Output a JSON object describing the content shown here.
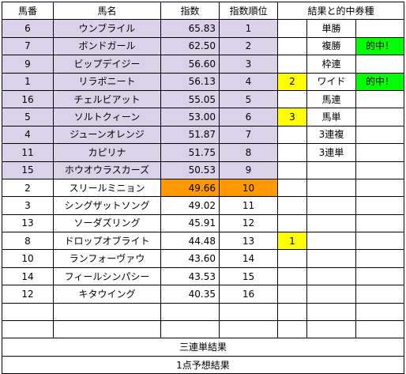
{
  "headers": [
    "馬番",
    "馬名",
    "指数",
    "指数順位",
    "結果と的中券種"
  ],
  "horses": [
    {
      "no": "6",
      "name": "ウンブライル",
      "score": "65.83",
      "rank": "1"
    },
    {
      "no": "7",
      "name": "ボンドガール",
      "score": "62.50",
      "rank": "2"
    },
    {
      "no": "9",
      "name": "ビップデイジー",
      "score": "56.60",
      "rank": "3"
    },
    {
      "no": "1",
      "name": "リラボニート",
      "score": "56.13",
      "rank": "4"
    },
    {
      "no": "16",
      "name": "チェルビアット",
      "score": "55.05",
      "rank": "5"
    },
    {
      "no": "5",
      "name": "ソルトクィーン",
      "score": "53.00",
      "rank": "6"
    },
    {
      "no": "4",
      "name": "ジューンオレンジ",
      "score": "51.87",
      "rank": "7"
    },
    {
      "no": "11",
      "name": "カピリナ",
      "score": "51.75",
      "rank": "8"
    },
    {
      "no": "15",
      "name": "ホウオウラスカーズ",
      "score": "50.53",
      "rank": "9"
    },
    {
      "no": "2",
      "name": "スリールミニョン",
      "score": "49.66",
      "rank": "10"
    },
    {
      "no": "3",
      "name": "シングザットソング",
      "score": "49.02",
      "rank": "11"
    },
    {
      "no": "13",
      "name": "ソーダズリング",
      "score": "45.91",
      "rank": "12"
    },
    {
      "no": "8",
      "name": "ドロップオブライト",
      "score": "44.48",
      "rank": "13"
    },
    {
      "no": "10",
      "name": "ランフォーヴァウ",
      "score": "43.60",
      "rank": "14"
    },
    {
      "no": "14",
      "name": "フィールシンパシー",
      "score": "43.53",
      "rank": "15"
    },
    {
      "no": "12",
      "name": "キタウイング",
      "score": "40.35",
      "rank": "16"
    }
  ],
  "results": [
    {
      "place": "",
      "bet": "単勝",
      "hit": ""
    },
    {
      "place": "",
      "bet": "複勝",
      "hit": "的中！"
    },
    {
      "place": "",
      "bet": "枠連",
      "hit": ""
    },
    {
      "place": "2",
      "bet": "ワイド",
      "hit": "的中！"
    },
    {
      "place": "",
      "bet": "馬連",
      "hit": ""
    },
    {
      "place": "3",
      "bet": "馬単",
      "hit": ""
    },
    {
      "place": "",
      "bet": "3連複",
      "hit": ""
    },
    {
      "place": "",
      "bet": "3連単",
      "hit": ""
    },
    {
      "place": "",
      "bet": "",
      "hit": ""
    },
    {
      "place": "",
      "bet": "",
      "hit": ""
    },
    {
      "place": "",
      "bet": "",
      "hit": ""
    },
    {
      "place": "",
      "bet": "",
      "hit": ""
    },
    {
      "place": "1",
      "bet": "",
      "hit": ""
    },
    {
      "place": "",
      "bet": "",
      "hit": ""
    },
    {
      "place": "",
      "bet": "",
      "hit": ""
    },
    {
      "place": "",
      "bet": "",
      "hit": ""
    }
  ],
  "footer": {
    "trifecta_result": "三連単結果",
    "one_point_prediction": "1点予想結果"
  },
  "colors": {
    "top_rank_fill": "#d9d2e9",
    "highlight_fill": "#ff9900",
    "place_fill": "#ffff00",
    "hit_fill": "#00ff00"
  }
}
